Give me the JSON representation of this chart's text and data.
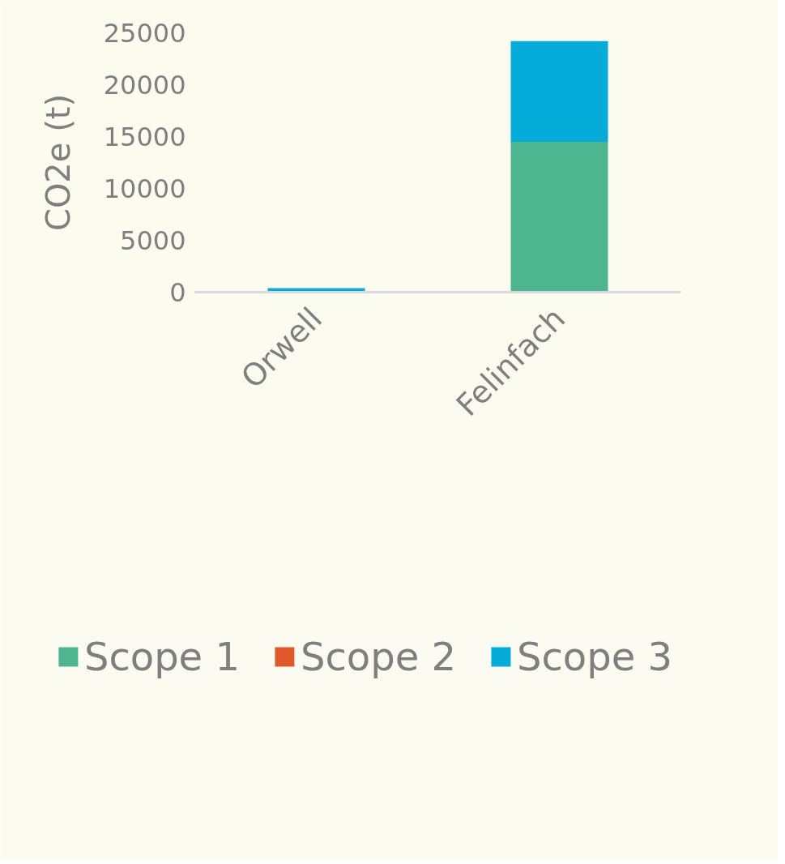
{
  "chart_data": {
    "type": "bar",
    "stacked": true,
    "ylabel": "CO2e (t)",
    "categories": [
      "Orwell",
      "Felinfach"
    ],
    "series": [
      {
        "name": "Scope 1",
        "color": "#4db58f",
        "values": [
          0,
          14500
        ]
      },
      {
        "name": "Scope 2",
        "color": "#e05a2b",
        "values": [
          0,
          0
        ]
      },
      {
        "name": "Scope 3",
        "color": "#05acda",
        "values": [
          400,
          9700
        ]
      }
    ],
    "ylim": [
      0,
      25000
    ],
    "yticks": [
      0,
      5000,
      10000,
      15000,
      20000,
      25000
    ],
    "grid": false,
    "legend": "bottom"
  }
}
